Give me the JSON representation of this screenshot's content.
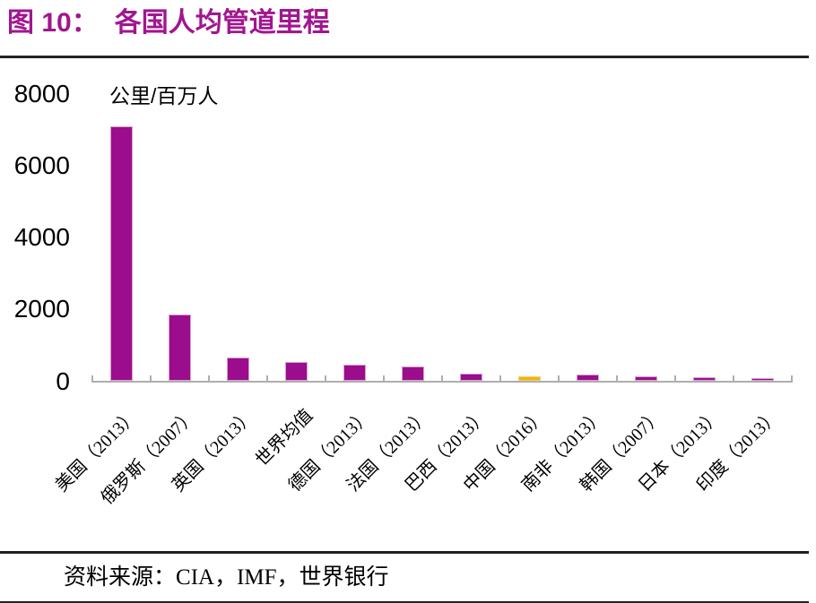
{
  "figure": {
    "label": "图 10：",
    "title": "各国人均管道里程"
  },
  "chart_data": {
    "type": "bar",
    "title": "各国人均管道里程",
    "unit_label": "公里/百万人",
    "categories": [
      "美国（2013）",
      "俄罗斯（2007）",
      "英国（2013）",
      "世界均值",
      "德国（2013）",
      "法国（2013）",
      "巴西（2013）",
      "中国（2016）",
      "南非（2013）",
      "韩国（2007）",
      "日本（2013）",
      "印度（2013）"
    ],
    "values": [
      7100,
      1860,
      650,
      540,
      460,
      410,
      200,
      140,
      180,
      140,
      110,
      90
    ],
    "highlight_index": 7,
    "yticks": [
      8000,
      6000,
      4000,
      2000,
      0
    ],
    "ylim": [
      0,
      8000
    ],
    "grid": false,
    "legend": null,
    "colors": {
      "bar": "#9b0d8c",
      "bar_border": "#d9a0d2",
      "highlight": "#f3b500",
      "highlight_border": "#f4cf7c",
      "axis": "#aeaeae",
      "title": "#a1168f"
    }
  },
  "source": {
    "prefix": "资料来源：",
    "text": "CIA，IMF，世界银行"
  }
}
